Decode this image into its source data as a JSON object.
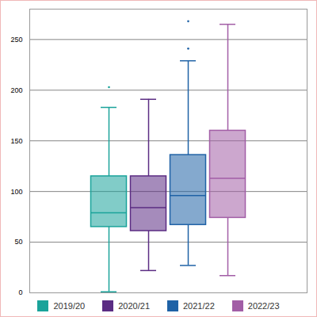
{
  "chart_data": {
    "type": "box",
    "series": [
      {
        "name": "2019/20",
        "color": "#1aa39a",
        "min": 1,
        "q1": 65,
        "median": 79,
        "q3": 115,
        "max": 183,
        "outliers": [
          203
        ]
      },
      {
        "name": "2020/21",
        "color": "#5b2c83",
        "min": 22,
        "q1": 61,
        "median": 84,
        "q3": 115,
        "max": 191,
        "outliers": []
      },
      {
        "name": "2021/22",
        "color": "#1f62a6",
        "min": 27,
        "q1": 67,
        "median": 96,
        "q3": 136,
        "max": 229,
        "outliers": [
          241,
          268
        ]
      },
      {
        "name": "2022/23",
        "color": "#a25ea6",
        "min": 17,
        "q1": 74,
        "median": 113,
        "q3": 160,
        "max": 265,
        "outliers": []
      }
    ],
    "ylim": [
      0,
      280
    ],
    "yticks": [
      0,
      50,
      100,
      150,
      200,
      250
    ],
    "grid": true,
    "legend": "bottom",
    "tick_labels": "y"
  }
}
